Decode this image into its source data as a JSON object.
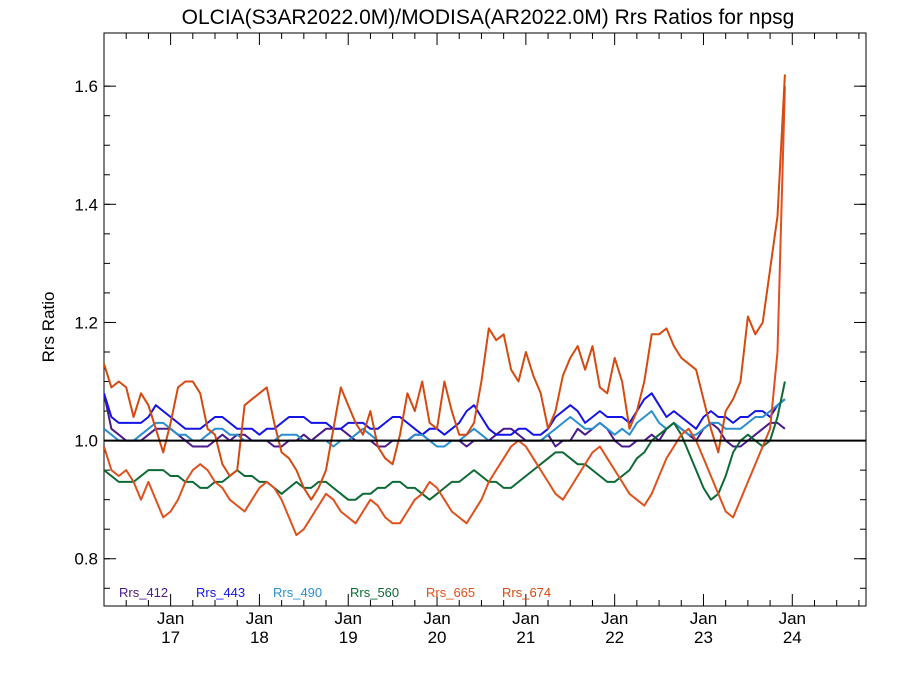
{
  "chart_data": {
    "type": "line",
    "title": "OLCIA(S3AR2022.0M)/MODISA(AR2022.0M)  Rrs Ratios for npsg",
    "ylabel": "Rrs Ratio",
    "xlabel": "",
    "ylim": [
      0.72,
      1.69
    ],
    "xlim": [
      2016.25,
      2024.83
    ],
    "yticks": [
      0.8,
      1.0,
      1.2,
      1.4,
      1.6
    ],
    "ytick_labels": [
      "0.8",
      "1.0",
      "1.2",
      "1.4",
      "1.6"
    ],
    "xticks": [
      {
        "x": 2017,
        "month": "Jan",
        "year": "17"
      },
      {
        "x": 2018,
        "month": "Jan",
        "year": "18"
      },
      {
        "x": 2019,
        "month": "Jan",
        "year": "19"
      },
      {
        "x": 2020,
        "month": "Jan",
        "year": "20"
      },
      {
        "x": 2021,
        "month": "Jan",
        "year": "21"
      },
      {
        "x": 2022,
        "month": "Jan",
        "year": "22"
      },
      {
        "x": 2023,
        "month": "Jan",
        "year": "23"
      },
      {
        "x": 2024,
        "month": "Jan",
        "year": "24"
      }
    ],
    "reference_line": 1.0,
    "grid": false,
    "legend_position": "bottom-left",
    "x_start": 2016.25,
    "x_step": 0.0833333,
    "series": [
      {
        "name": "Rrs_412",
        "color": "#4b1a8c",
        "values": [
          1.08,
          1.02,
          1.01,
          1.0,
          1.0,
          1.0,
          1.01,
          1.02,
          1.02,
          1.02,
          1.01,
          1.0,
          0.99,
          0.99,
          0.99,
          1.0,
          1.01,
          1.0,
          1.01,
          1.01,
          1.0,
          1.0,
          1.0,
          0.99,
          0.99,
          1.0,
          1.0,
          1.01,
          1.0,
          1.01,
          1.02,
          1.02,
          1.02,
          1.01,
          1.0,
          1.0,
          1.0,
          0.99,
          0.99,
          1.0,
          1.0,
          1.0,
          1.01,
          1.01,
          1.0,
          1.0,
          1.0,
          1.0,
          1.0,
          0.99,
          1.0,
          1.0,
          1.0,
          1.01,
          1.02,
          1.02,
          1.01,
          1.0,
          1.0,
          1.0,
          1.01,
          0.99,
          1.0,
          1.0,
          1.02,
          1.01,
          1.02,
          1.03,
          1.02,
          1.0,
          0.99,
          0.99,
          1.0,
          1.0,
          1.01,
          1.0,
          1.02,
          1.03,
          1.02,
          1.01,
          1.0,
          1.02,
          1.03,
          1.02,
          1.0,
          0.99,
          0.99,
          1.0,
          1.01,
          1.02,
          1.03,
          1.03,
          1.02
        ]
      },
      {
        "name": "Rrs_443",
        "color": "#1414e6",
        "values": [
          1.08,
          1.04,
          1.03,
          1.03,
          1.03,
          1.03,
          1.04,
          1.06,
          1.05,
          1.04,
          1.03,
          1.02,
          1.02,
          1.02,
          1.03,
          1.04,
          1.04,
          1.03,
          1.02,
          1.02,
          1.02,
          1.01,
          1.02,
          1.02,
          1.03,
          1.04,
          1.04,
          1.04,
          1.03,
          1.03,
          1.03,
          1.02,
          1.02,
          1.03,
          1.03,
          1.03,
          1.02,
          1.02,
          1.03,
          1.04,
          1.04,
          1.03,
          1.02,
          1.01,
          1.02,
          1.02,
          1.01,
          1.02,
          1.03,
          1.05,
          1.06,
          1.04,
          1.02,
          1.01,
          1.01,
          1.01,
          1.02,
          1.02,
          1.01,
          1.01,
          1.02,
          1.04,
          1.05,
          1.06,
          1.05,
          1.03,
          1.04,
          1.05,
          1.04,
          1.04,
          1.04,
          1.03,
          1.05,
          1.07,
          1.08,
          1.06,
          1.04,
          1.05,
          1.04,
          1.03,
          1.02,
          1.04,
          1.05,
          1.04,
          1.04,
          1.03,
          1.04,
          1.04,
          1.05,
          1.05,
          1.04,
          1.06,
          1.07
        ]
      },
      {
        "name": "Rrs_490",
        "color": "#2a8fd0",
        "values": [
          1.02,
          1.01,
          1.0,
          1.0,
          1.0,
          1.01,
          1.02,
          1.03,
          1.03,
          1.02,
          1.01,
          1.01,
          1.0,
          1.0,
          1.01,
          1.02,
          1.02,
          1.01,
          1.01,
          1.0,
          1.0,
          1.0,
          1.0,
          1.0,
          1.01,
          1.01,
          1.01,
          1.0,
          1.0,
          1.0,
          1.0,
          0.99,
          1.0,
          1.0,
          1.01,
          1.02,
          1.01,
          1.0,
          1.0,
          1.0,
          1.0,
          1.0,
          1.01,
          1.01,
          1.0,
          0.99,
          0.99,
          1.0,
          1.0,
          1.01,
          1.02,
          1.01,
          1.0,
          1.0,
          1.0,
          1.0,
          1.0,
          1.0,
          1.0,
          1.0,
          1.01,
          1.02,
          1.03,
          1.04,
          1.03,
          1.02,
          1.02,
          1.03,
          1.02,
          1.01,
          1.02,
          1.01,
          1.03,
          1.04,
          1.05,
          1.03,
          1.02,
          1.03,
          1.02,
          1.01,
          1.01,
          1.02,
          1.03,
          1.03,
          1.02,
          1.02,
          1.02,
          1.03,
          1.04,
          1.04,
          1.05,
          1.06,
          1.07
        ]
      },
      {
        "name": "Rrs_560",
        "color": "#0e6a35",
        "values": [
          0.95,
          0.94,
          0.93,
          0.93,
          0.93,
          0.94,
          0.95,
          0.95,
          0.95,
          0.94,
          0.94,
          0.93,
          0.93,
          0.92,
          0.92,
          0.93,
          0.93,
          0.94,
          0.95,
          0.94,
          0.94,
          0.93,
          0.93,
          0.92,
          0.91,
          0.92,
          0.93,
          0.92,
          0.92,
          0.93,
          0.93,
          0.92,
          0.91,
          0.9,
          0.9,
          0.91,
          0.91,
          0.92,
          0.92,
          0.93,
          0.93,
          0.92,
          0.92,
          0.91,
          0.9,
          0.91,
          0.92,
          0.93,
          0.93,
          0.94,
          0.95,
          0.94,
          0.93,
          0.93,
          0.92,
          0.92,
          0.93,
          0.94,
          0.95,
          0.96,
          0.97,
          0.98,
          0.98,
          0.97,
          0.96,
          0.96,
          0.95,
          0.94,
          0.93,
          0.93,
          0.94,
          0.95,
          0.97,
          0.98,
          1.0,
          1.01,
          1.02,
          1.03,
          1.01,
          0.98,
          0.95,
          0.92,
          0.9,
          0.91,
          0.94,
          0.98,
          1.0,
          1.01,
          1.0,
          0.99,
          1.0,
          1.04,
          1.1
        ]
      },
      {
        "name": "Rrs_665",
        "color": "#e0501c",
        "values": [
          0.99,
          0.95,
          0.94,
          0.95,
          0.93,
          0.9,
          0.93,
          0.9,
          0.87,
          0.88,
          0.9,
          0.93,
          0.95,
          0.96,
          0.95,
          0.93,
          0.92,
          0.9,
          0.89,
          0.88,
          0.9,
          0.92,
          0.93,
          0.92,
          0.9,
          0.87,
          0.84,
          0.85,
          0.87,
          0.89,
          0.91,
          0.9,
          0.88,
          0.87,
          0.86,
          0.88,
          0.9,
          0.89,
          0.87,
          0.86,
          0.86,
          0.88,
          0.9,
          0.91,
          0.93,
          0.92,
          0.9,
          0.88,
          0.87,
          0.86,
          0.88,
          0.9,
          0.93,
          0.95,
          0.97,
          0.99,
          1.0,
          0.99,
          0.97,
          0.95,
          0.93,
          0.91,
          0.9,
          0.92,
          0.94,
          0.96,
          0.98,
          0.99,
          0.97,
          0.95,
          0.93,
          0.91,
          0.9,
          0.89,
          0.91,
          0.94,
          0.97,
          0.99,
          1.01,
          1.02,
          1.0,
          0.97,
          0.94,
          0.91,
          0.88,
          0.87,
          0.9,
          0.93,
          0.96,
          0.99,
          1.02,
          1.15,
          1.6
        ]
      },
      {
        "name": "Rrs_674",
        "color": "#d44a10",
        "values": [
          1.13,
          1.09,
          1.1,
          1.09,
          1.04,
          1.08,
          1.06,
          1.02,
          0.98,
          1.03,
          1.09,
          1.1,
          1.1,
          1.08,
          1.02,
          1.01,
          0.96,
          0.94,
          0.95,
          1.06,
          1.07,
          1.08,
          1.09,
          1.03,
          0.98,
          0.97,
          0.95,
          0.92,
          0.9,
          0.92,
          0.95,
          1.02,
          1.09,
          1.06,
          1.03,
          1.01,
          1.05,
          0.99,
          0.97,
          0.96,
          1.01,
          1.08,
          1.05,
          1.1,
          1.03,
          1.02,
          1.1,
          1.05,
          1.01,
          1.01,
          1.03,
          1.1,
          1.19,
          1.17,
          1.18,
          1.12,
          1.1,
          1.15,
          1.11,
          1.08,
          1.02,
          1.05,
          1.11,
          1.14,
          1.16,
          1.12,
          1.16,
          1.09,
          1.08,
          1.14,
          1.1,
          1.02,
          1.05,
          1.1,
          1.18,
          1.18,
          1.19,
          1.16,
          1.14,
          1.13,
          1.12,
          1.07,
          1.02,
          0.98,
          1.05,
          1.07,
          1.1,
          1.21,
          1.18,
          1.2,
          1.29,
          1.38,
          1.62
        ]
      }
    ]
  }
}
